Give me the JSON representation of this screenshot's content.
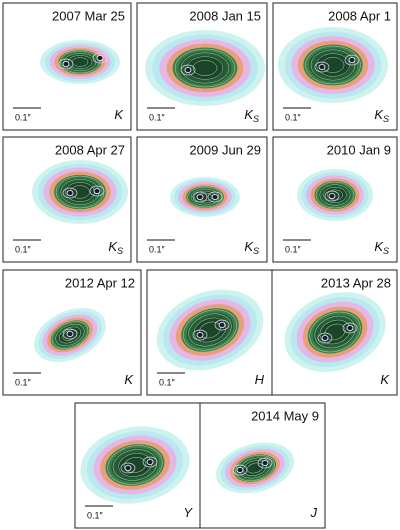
{
  "panels": [
    {
      "date": "2007 Mar 25",
      "scale": "0.1″",
      "band": "K"
    },
    {
      "date": "2008 Jan 15",
      "scale": "0.1″",
      "band": "K",
      "band_sub": "S"
    },
    {
      "date": "2008 Apr 1",
      "scale": "0.1″",
      "band": "K",
      "band_sub": "S"
    },
    {
      "date": "2008 Apr 27",
      "scale": "0.1″",
      "band": "K",
      "band_sub": "S"
    },
    {
      "date": "2009 Jun 29",
      "scale": "0.1″",
      "band": "K",
      "band_sub": "S"
    },
    {
      "date": "2010 Jan 9",
      "scale": "0.1″",
      "band": "K",
      "band_sub": "S"
    },
    {
      "date": "2012 Apr 12",
      "scale": "0.1″",
      "band": "K"
    },
    {
      "scale": "0.1″",
      "band": "H"
    },
    {
      "date": "2013 Apr 28",
      "band": "K"
    },
    {
      "scale": "0.1″",
      "band": "Y"
    },
    {
      "date": "2014 May 9",
      "band": "J"
    }
  ]
}
